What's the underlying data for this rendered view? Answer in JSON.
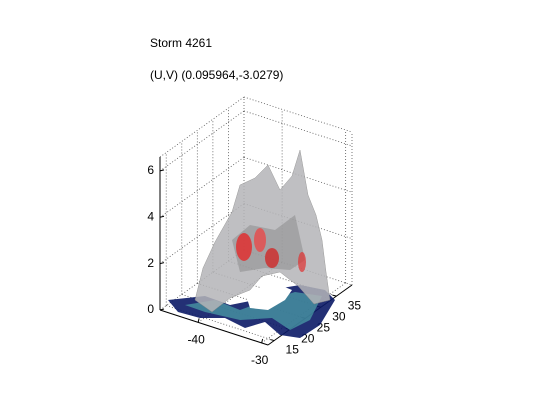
{
  "chart_data": {
    "type": "surface3d",
    "title": "Storm 4261",
    "subtitle": "(U,V) (0.095964,-3.0279)",
    "xlim": [
      -46,
      -29
    ],
    "xticks": [
      -40,
      -30
    ],
    "ylim": [
      13,
      40
    ],
    "yticks": [
      15,
      20,
      25,
      30,
      35
    ],
    "zlim": [
      0,
      6.6
    ],
    "zticks": [
      0,
      2,
      4,
      6
    ],
    "grid": true
  }
}
